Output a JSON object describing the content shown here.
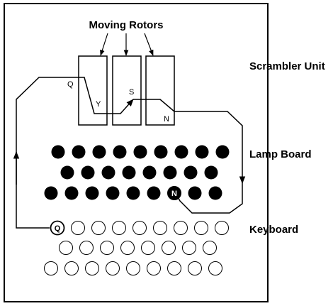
{
  "labels": {
    "moving_rotors": "Moving Rotors",
    "scrambler_unit": "Scrambler Unit",
    "lamp_board": "Lamp Board",
    "keyboard": "Keyboard"
  },
  "wiring_letters": {
    "q": "Q",
    "y": "Y",
    "s": "S",
    "n": "N"
  },
  "keyboard_rows": [
    9,
    8,
    9
  ],
  "lamp_rows": [
    9,
    8,
    9
  ],
  "pressed_key": "Q",
  "lit_lamp": "N",
  "colors": {
    "ink": "#000000",
    "background": "#ffffff"
  }
}
